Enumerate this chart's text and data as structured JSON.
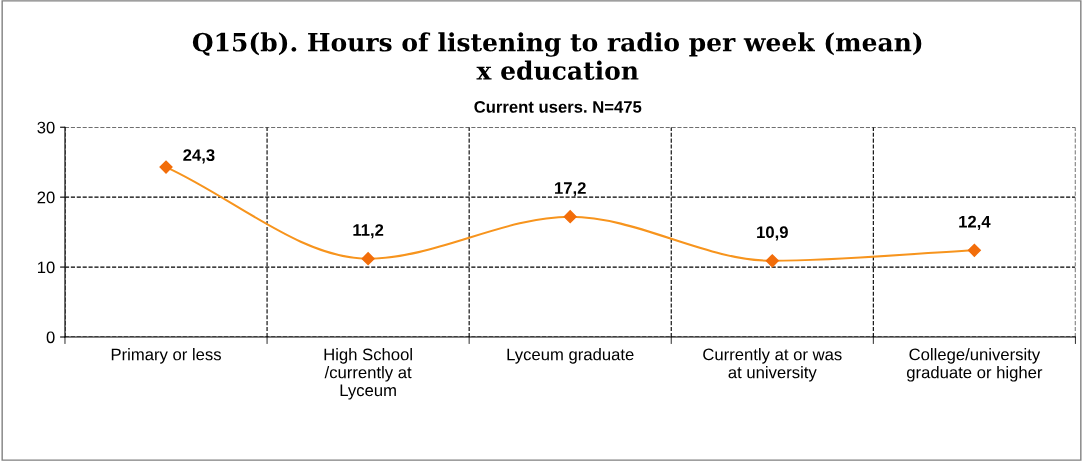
{
  "chart_data": {
    "type": "line",
    "title": "Q15(b). Hours of listening to radio per week (mean)\nx education",
    "subtitle": "Current users. N=475",
    "categories": [
      "Primary or less",
      "High School\n/currently at\nLyceum",
      "Lyceum graduate",
      "Currently at or was\nat university",
      "College/university\ngraduate or higher"
    ],
    "series": [
      {
        "color": "#f7941d",
        "values": [
          24.3,
          11.2,
          17.2,
          10.9,
          12.4
        ],
        "value_labels": [
          "24,3",
          "11,2",
          "17,2",
          "10,9",
          "12,4"
        ]
      }
    ],
    "ylim": [
      0,
      30
    ],
    "yticks": [
      0,
      10,
      20,
      30
    ],
    "grid": true,
    "marker": "diamond",
    "line_style": "solid"
  }
}
